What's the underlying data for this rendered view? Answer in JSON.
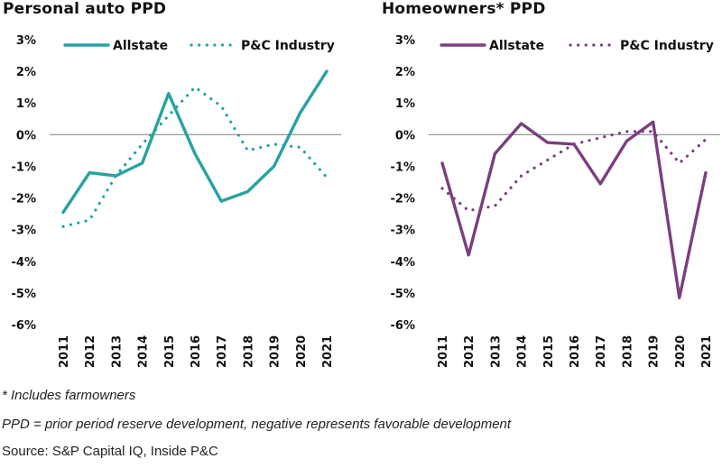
{
  "chart_data": [
    {
      "type": "line",
      "title": "Personal auto PPD",
      "xlabel": "",
      "ylabel": "",
      "x": [
        "2011",
        "2012",
        "2013",
        "2014",
        "2015",
        "2016",
        "2017",
        "2018",
        "2019",
        "2020",
        "2021"
      ],
      "y_ticks": [
        "3%",
        "2%",
        "1%",
        "0%",
        "-1%",
        "-2%",
        "-3%",
        "-4%",
        "-5%",
        "-6%"
      ],
      "ylim": [
        -6,
        3
      ],
      "grid": false,
      "legend_position": "top",
      "color": "#26A3A1",
      "series": [
        {
          "name": "Allstate",
          "style": "solid",
          "values": [
            -2.45,
            -1.2,
            -1.3,
            -0.9,
            1.3,
            -0.6,
            -2.1,
            -1.8,
            -1.0,
            0.7,
            2.0
          ]
        },
        {
          "name": "P&C Industry",
          "style": "dotted",
          "values": [
            -2.9,
            -2.7,
            -1.3,
            -0.3,
            0.6,
            1.5,
            0.9,
            -0.5,
            -0.3,
            -0.4,
            -1.35
          ]
        }
      ]
    },
    {
      "type": "line",
      "title": "Homeowners* PPD",
      "xlabel": "",
      "ylabel": "",
      "x": [
        "2011",
        "2012",
        "2013",
        "2014",
        "2015",
        "2016",
        "2017",
        "2018",
        "2019",
        "2020",
        "2021"
      ],
      "y_ticks": [
        "3%",
        "2%",
        "1%",
        "0%",
        "-1%",
        "-2%",
        "-3%",
        "-4%",
        "-5%",
        "-6%"
      ],
      "ylim": [
        -6,
        3
      ],
      "grid": false,
      "legend_position": "top",
      "color": "#7B3F7E",
      "series": [
        {
          "name": "Allstate",
          "style": "solid",
          "values": [
            -0.9,
            -3.8,
            -0.6,
            0.35,
            -0.25,
            -0.3,
            -1.55,
            -0.2,
            0.4,
            -5.15,
            -1.2
          ]
        },
        {
          "name": "P&C Industry",
          "style": "dotted",
          "values": [
            -1.7,
            -2.4,
            -2.25,
            -1.3,
            -0.8,
            -0.3,
            -0.1,
            0.1,
            0.1,
            -0.9,
            -0.15
          ]
        }
      ]
    }
  ],
  "notes": {
    "footnote": "* Includes farmowners",
    "definition": "PPD = prior period reserve development, negative represents favorable development",
    "source": "Source: S&P Capital IQ, Inside P&C"
  }
}
